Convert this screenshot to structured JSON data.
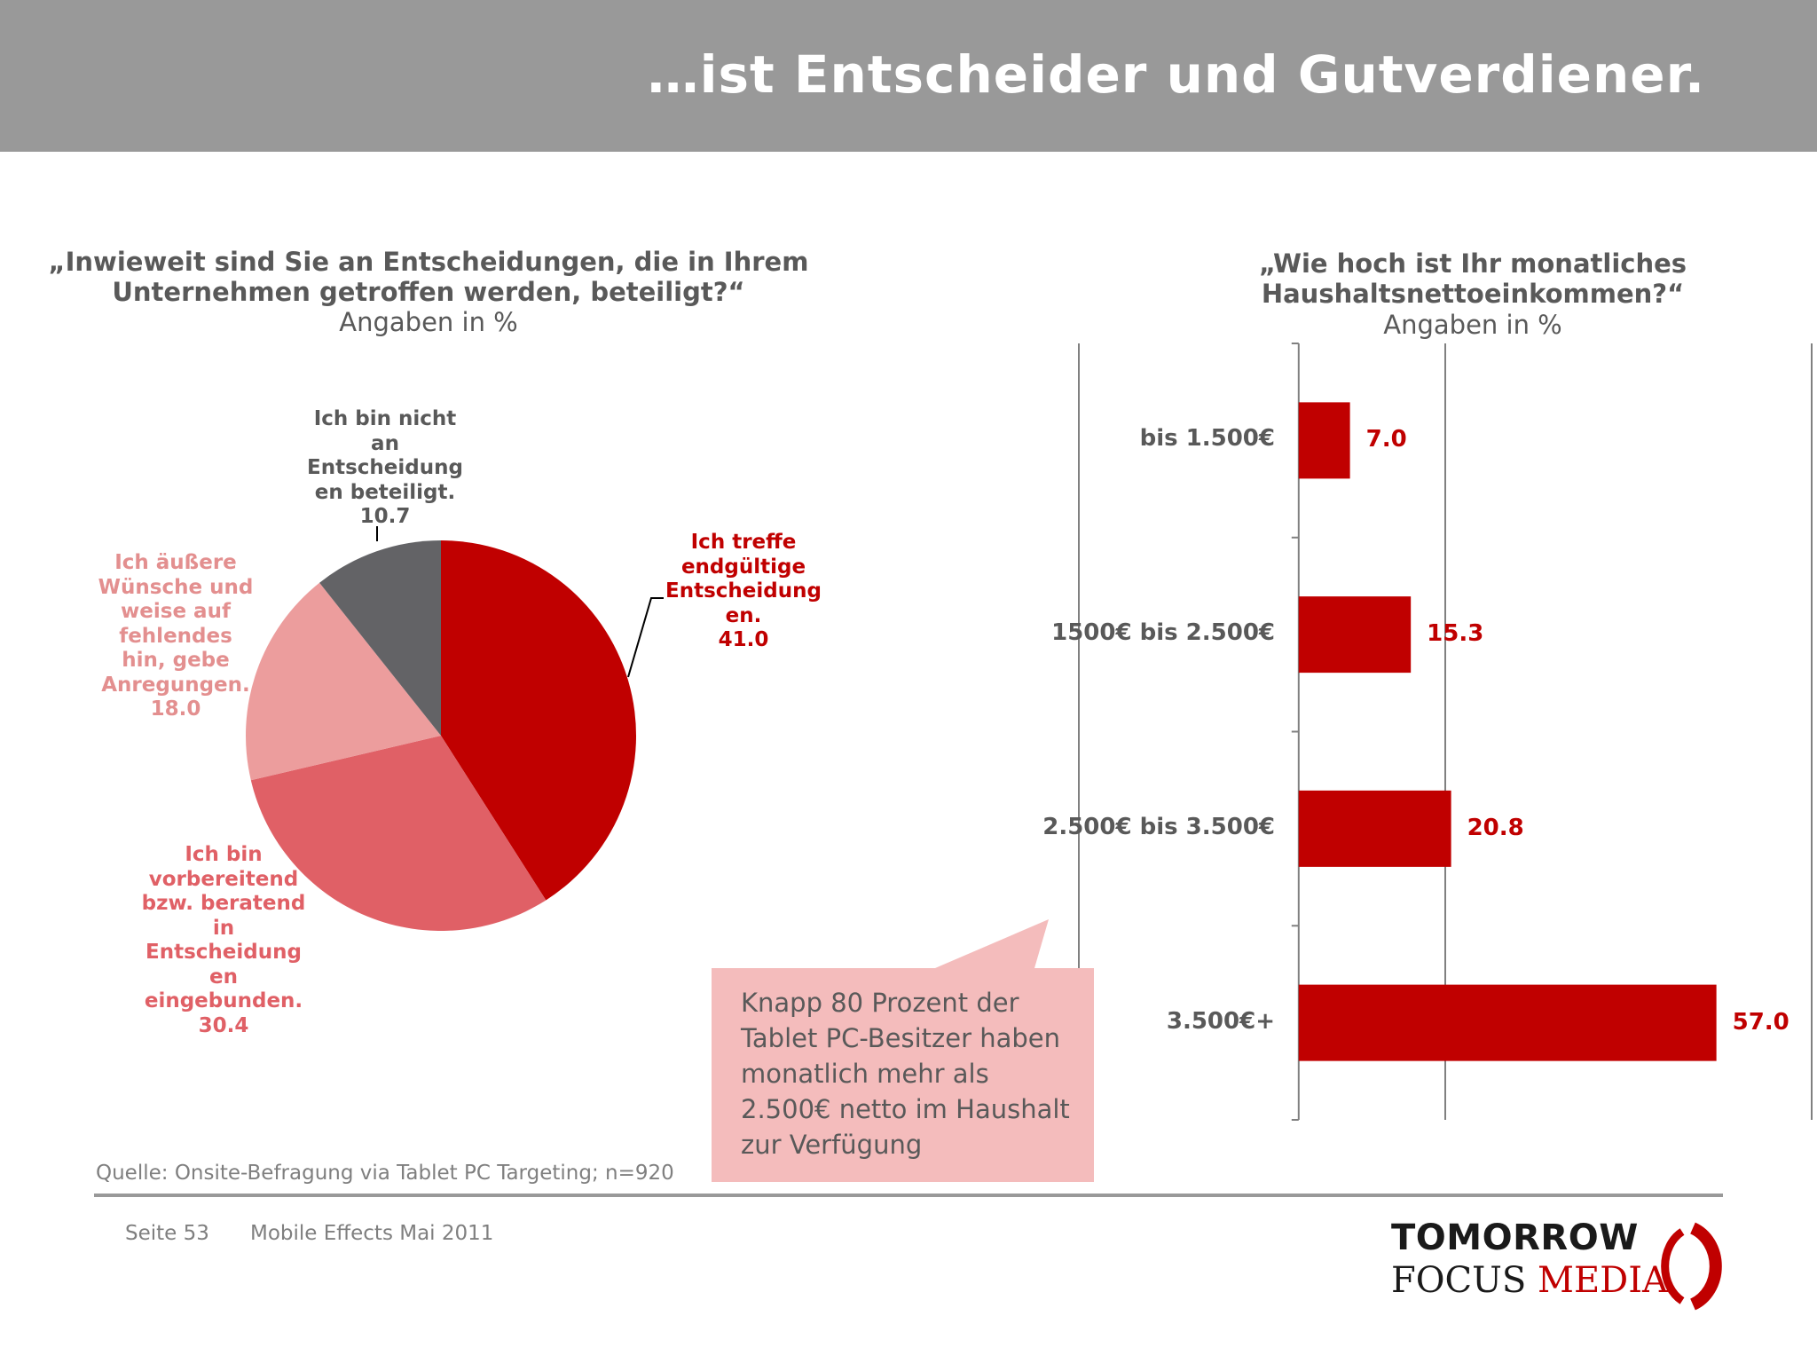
{
  "header": {
    "title": "…ist Entscheider und Gutverdiener."
  },
  "colors": {
    "accent": "#c00000",
    "slice_dark_red": "#c00000",
    "slice_red": "#e06066",
    "slice_pink": "#ec9d9d",
    "slice_gray": "#636366",
    "callout_bg": "#f4bcbc",
    "axis": "#808080"
  },
  "chart_data": [
    {
      "type": "pie",
      "title_line1": "„Inwieweit sind Sie an Entscheidungen, die in Ihrem",
      "title_line2": "Unternehmen getroffen werden, beteiligt?“",
      "subtitle": "Angaben in %",
      "slices": [
        {
          "label_lines": [
            "Ich treffe",
            "endgültige",
            "Entscheidung",
            "en."
          ],
          "value": 41.0,
          "value_text": "41.0",
          "color": "#c00000"
        },
        {
          "label_lines": [
            "Ich bin",
            "vorbereitend",
            "bzw. beratend",
            "in",
            "Entscheidung",
            "en",
            "eingebunden."
          ],
          "value": 30.4,
          "value_text": "30.4",
          "color": "#e06066"
        },
        {
          "label_lines": [
            "Ich äußere",
            "Wünsche und",
            "weise auf",
            "fehlendes",
            "hin, gebe",
            "Anregungen."
          ],
          "value": 18.0,
          "value_text": "18.0",
          "color": "#ec9d9d"
        },
        {
          "label_lines": [
            "Ich bin nicht",
            "an",
            "Entscheidung",
            "en beteiligt."
          ],
          "value": 10.7,
          "value_text": "10.7",
          "color": "#636366"
        }
      ]
    },
    {
      "type": "bar",
      "orientation": "horizontal",
      "title_line1": "„Wie hoch ist Ihr monatliches",
      "title_line2": "Haushaltsnettoeinkommen?“",
      "subtitle": "Angaben in %",
      "categories": [
        "bis 1.500€",
        "1500€ bis 2.500€",
        "2.500€ bis 3.500€",
        "3.500€+"
      ],
      "values": [
        7.0,
        15.3,
        20.8,
        57.0
      ],
      "value_texts": [
        "7.0",
        "15.3",
        "20.8",
        "57.0"
      ],
      "xlim": [
        -30,
        70
      ],
      "gridlines": [
        -30,
        20,
        70
      ],
      "color": "#c00000"
    }
  ],
  "callout": {
    "lines": [
      "Knapp 80 Prozent der",
      "Tablet PC-Besitzer haben",
      "monatlich mehr als",
      "2.500€ netto im Haushalt",
      "zur Verfügung"
    ]
  },
  "source": "Quelle: Onsite-Befragung via Tablet PC Targeting; n=920",
  "footer": {
    "page": "Seite 53",
    "event": "Mobile Effects Mai 2011"
  },
  "logo": {
    "line1": "TOMORROW",
    "line2_a": "FOCUS",
    "line2_b": "MEDIA"
  }
}
